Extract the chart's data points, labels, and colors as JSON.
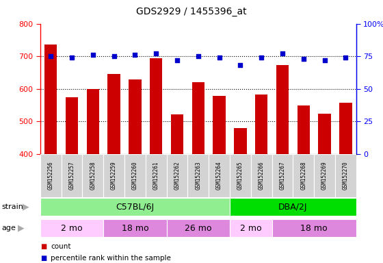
{
  "title": "GDS2929 / 1455396_at",
  "samples": [
    "GSM152256",
    "GSM152257",
    "GSM152258",
    "GSM152259",
    "GSM152260",
    "GSM152261",
    "GSM152262",
    "GSM152263",
    "GSM152264",
    "GSM152265",
    "GSM152266",
    "GSM152267",
    "GSM152268",
    "GSM152269",
    "GSM152270"
  ],
  "counts": [
    735,
    573,
    600,
    645,
    628,
    693,
    522,
    620,
    578,
    480,
    582,
    672,
    548,
    523,
    558
  ],
  "percentiles": [
    75,
    74,
    76,
    75,
    76,
    77,
    72,
    75,
    74,
    68,
    74,
    77,
    73,
    72,
    74
  ],
  "ylim_left": [
    400,
    800
  ],
  "ylim_right": [
    0,
    100
  ],
  "yticks_left": [
    400,
    500,
    600,
    700,
    800
  ],
  "yticks_right": [
    0,
    25,
    50,
    75,
    100
  ],
  "bar_color": "#cc0000",
  "dot_color": "#0000cc",
  "strain_groups": [
    {
      "label": "C57BL/6J",
      "start": 0,
      "end": 9,
      "color": "#90ee90"
    },
    {
      "label": "DBA/2J",
      "start": 9,
      "end": 15,
      "color": "#00dd00"
    }
  ],
  "age_groups": [
    {
      "label": "2 mo",
      "start": 0,
      "end": 3,
      "color": "#ffccff"
    },
    {
      "label": "18 mo",
      "start": 3,
      "end": 6,
      "color": "#dd88dd"
    },
    {
      "label": "26 mo",
      "start": 6,
      "end": 9,
      "color": "#dd88dd"
    },
    {
      "label": "2 mo",
      "start": 9,
      "end": 11,
      "color": "#ffccff"
    },
    {
      "label": "18 mo",
      "start": 11,
      "end": 15,
      "color": "#dd88dd"
    }
  ],
  "strain_label": "strain",
  "age_label": "age",
  "legend_count": "count",
  "legend_pct": "percentile rank within the sample",
  "arrow_color": "#aaaaaa"
}
